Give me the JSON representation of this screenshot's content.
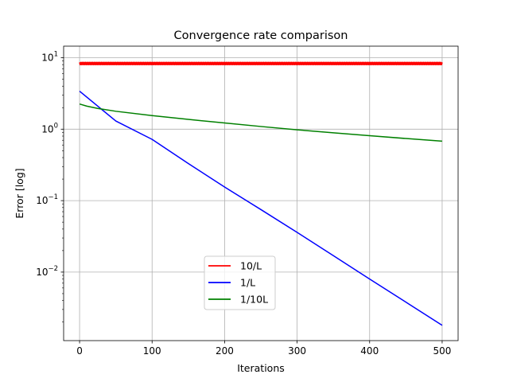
{
  "chart_data": {
    "type": "line",
    "title": "Convergence rate comparison",
    "xlabel": "Iterations",
    "ylabel": "Error [log]",
    "xlim": [
      -22,
      522
    ],
    "ylim": [
      0.0011,
      14.5
    ],
    "yscale": "log",
    "grid": true,
    "legend_position": "lower-center",
    "x_ticks": [
      0,
      100,
      200,
      300,
      400,
      500
    ],
    "x_tick_labels": [
      "0",
      "100",
      "200",
      "300",
      "400",
      "500"
    ],
    "y_ticks": [
      {
        "value": 10,
        "base": "10",
        "exp": "1"
      },
      {
        "value": 1,
        "base": "10",
        "exp": "0"
      },
      {
        "value": 0.1,
        "base": "10",
        "exp": "−1"
      },
      {
        "value": 0.01,
        "base": "10",
        "exp": "−2"
      }
    ],
    "series": [
      {
        "name": "10/L",
        "color": "#ff0000",
        "style": "oscillating",
        "x": [
          0,
          500
        ],
        "y": [
          8.4,
          8.4
        ],
        "y_low": 8.0,
        "y_high": 8.6,
        "points": 500
      },
      {
        "name": "1/L",
        "color": "#0000ff",
        "style": "line",
        "x": [
          0,
          50,
          100,
          150,
          200,
          250,
          300,
          350,
          400,
          450,
          500
        ],
        "y": [
          3.4,
          1.3,
          0.72,
          0.33,
          0.155,
          0.075,
          0.036,
          0.017,
          0.008,
          0.0038,
          0.0018
        ]
      },
      {
        "name": "1/10L",
        "color": "#008000",
        "style": "line",
        "x": [
          0,
          10,
          25,
          50,
          100,
          150,
          200,
          250,
          300,
          350,
          400,
          450,
          500
        ],
        "y": [
          2.25,
          2.1,
          1.95,
          1.78,
          1.55,
          1.37,
          1.22,
          1.09,
          0.98,
          0.89,
          0.81,
          0.74,
          0.68
        ]
      }
    ]
  }
}
